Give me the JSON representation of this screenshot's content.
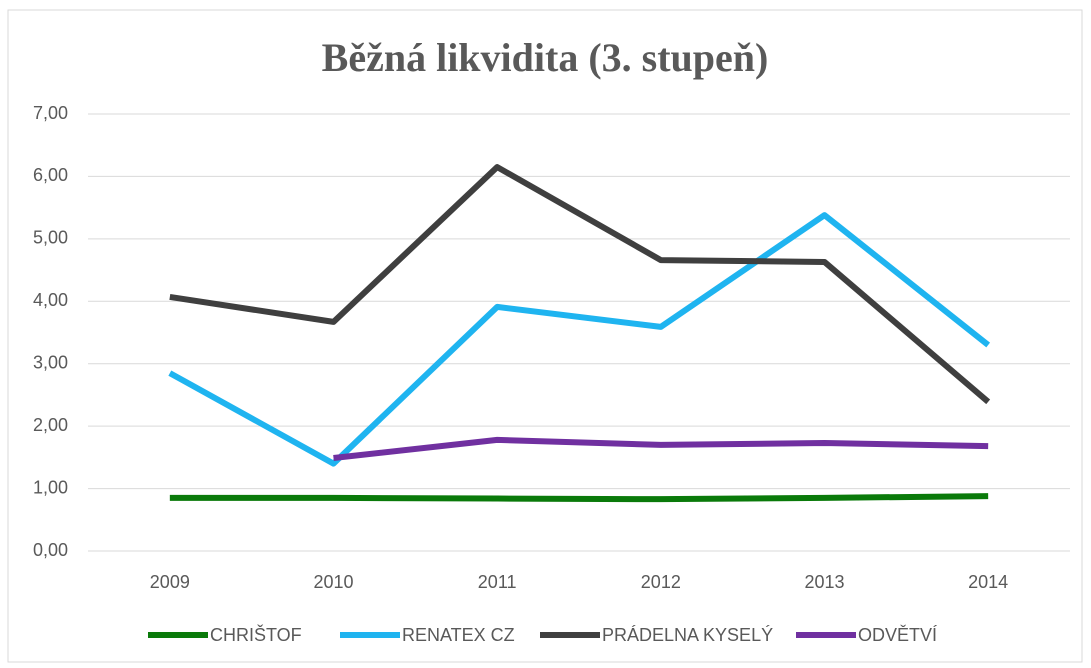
{
  "chart_data": {
    "type": "line",
    "title": "Běžná likvidita (3. stupeň)",
    "categories": [
      "2009",
      "2010",
      "2011",
      "2012",
      "2013",
      "2014"
    ],
    "series": [
      {
        "name": "CHRIŠTOF",
        "color": "#0a7a0a",
        "values": [
          0.85,
          0.85,
          0.84,
          0.83,
          0.85,
          0.88
        ]
      },
      {
        "name": "RENATEX CZ",
        "color": "#1fb4f0",
        "values": [
          2.85,
          1.4,
          3.91,
          3.59,
          5.38,
          3.3
        ]
      },
      {
        "name": "PRÁDELNA KYSELÝ",
        "color": "#3f3f3f",
        "values": [
          4.07,
          3.67,
          6.15,
          4.66,
          4.63,
          2.39
        ]
      },
      {
        "name": "ODVĚTVÍ",
        "color": "#7030a0",
        "values": [
          null,
          1.49,
          1.78,
          1.7,
          1.73,
          1.68
        ]
      }
    ],
    "ylim": [
      0,
      7
    ],
    "yticks": [
      {
        "value": 0,
        "label": "0,00"
      },
      {
        "value": 1,
        "label": "1,00"
      },
      {
        "value": 2,
        "label": "2,00"
      },
      {
        "value": 3,
        "label": "3,00"
      },
      {
        "value": 4,
        "label": "4,00"
      },
      {
        "value": 5,
        "label": "5,00"
      },
      {
        "value": 6,
        "label": "6,00"
      },
      {
        "value": 7,
        "label": "7,00"
      }
    ],
    "grid": true,
    "legend": "bottom"
  }
}
